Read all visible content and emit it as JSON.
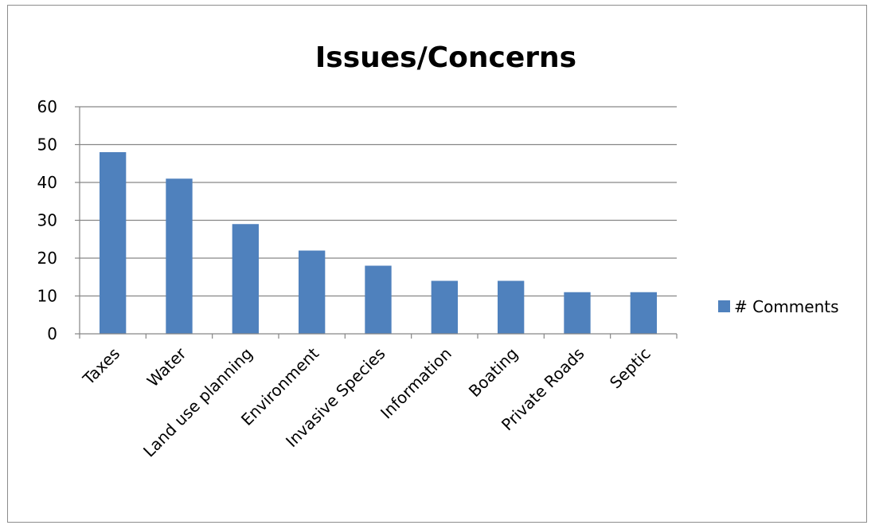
{
  "chart_data": {
    "type": "bar",
    "title": "Issues/Concerns",
    "xlabel": "",
    "ylabel": "",
    "categories": [
      "Taxes",
      "Water",
      "Land use planning",
      "Environment",
      "Invasive Species",
      "Information",
      "Boating",
      "Private Roads",
      "Septic"
    ],
    "series": [
      {
        "name": "# Comments",
        "values": [
          48,
          41,
          29,
          22,
          18,
          14,
          14,
          11,
          11
        ],
        "color": "#4f81bd"
      }
    ],
    "ylim": [
      0,
      60
    ],
    "yticks": [
      "0",
      "10",
      "20",
      "30",
      "40",
      "50",
      "60"
    ],
    "grid": true,
    "legend_position": "right",
    "gridline_color": "#868686",
    "axis_color": "#868686"
  }
}
